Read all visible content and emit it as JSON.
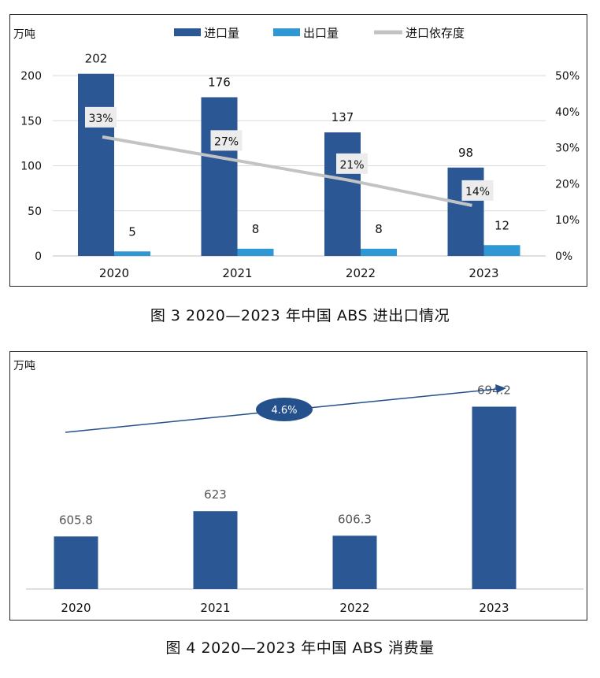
{
  "charts": [
    {
      "caption": "图 3  2020—2023 年中国 ABS 进出口情况",
      "chart_data": {
        "type": "bar",
        "unit_label": "万吨",
        "categories": [
          "2020",
          "2021",
          "2022",
          "2023"
        ],
        "series": [
          {
            "name": "进口量",
            "type": "bar",
            "axis": "left",
            "values": [
              202,
              176,
              137,
              98
            ],
            "color": "#2b5794"
          },
          {
            "name": "出口量",
            "type": "bar",
            "axis": "left",
            "values": [
              5,
              8,
              8,
              12
            ],
            "color": "#2e97d4"
          },
          {
            "name": "进口依存度",
            "type": "line",
            "axis": "right",
            "values": [
              33,
              27,
              21,
              14
            ],
            "labels": [
              "33%",
              "27%",
              "21%",
              "14%"
            ],
            "color": "#c3c3c3"
          }
        ],
        "y_left": {
          "ticks": [
            "0",
            "50",
            "100",
            "150",
            "200"
          ],
          "range": [
            0,
            200
          ]
        },
        "y_right": {
          "ticks": [
            "0%",
            "10%",
            "20%",
            "30%",
            "40%",
            "50%"
          ],
          "range": [
            0,
            50
          ]
        },
        "legend_position": "top",
        "grid": true
      }
    },
    {
      "caption": "图 4  2020—2023 年中国 ABS 消费量",
      "chart_data": {
        "type": "bar",
        "unit_label": "万吨",
        "categories": [
          "2020",
          "2021",
          "2022",
          "2023"
        ],
        "series": [
          {
            "name": "",
            "type": "bar",
            "values": [
              605.8,
              623,
              606.3,
              694.2
            ],
            "labels": [
              "605.8",
              "623",
              "606.3",
              "694.2"
            ],
            "color": "#2b5794"
          }
        ],
        "y_range": [
          570,
          710
        ],
        "annotation": {
          "text": "4.6%",
          "color": "#24508c"
        },
        "grid": false
      }
    }
  ]
}
